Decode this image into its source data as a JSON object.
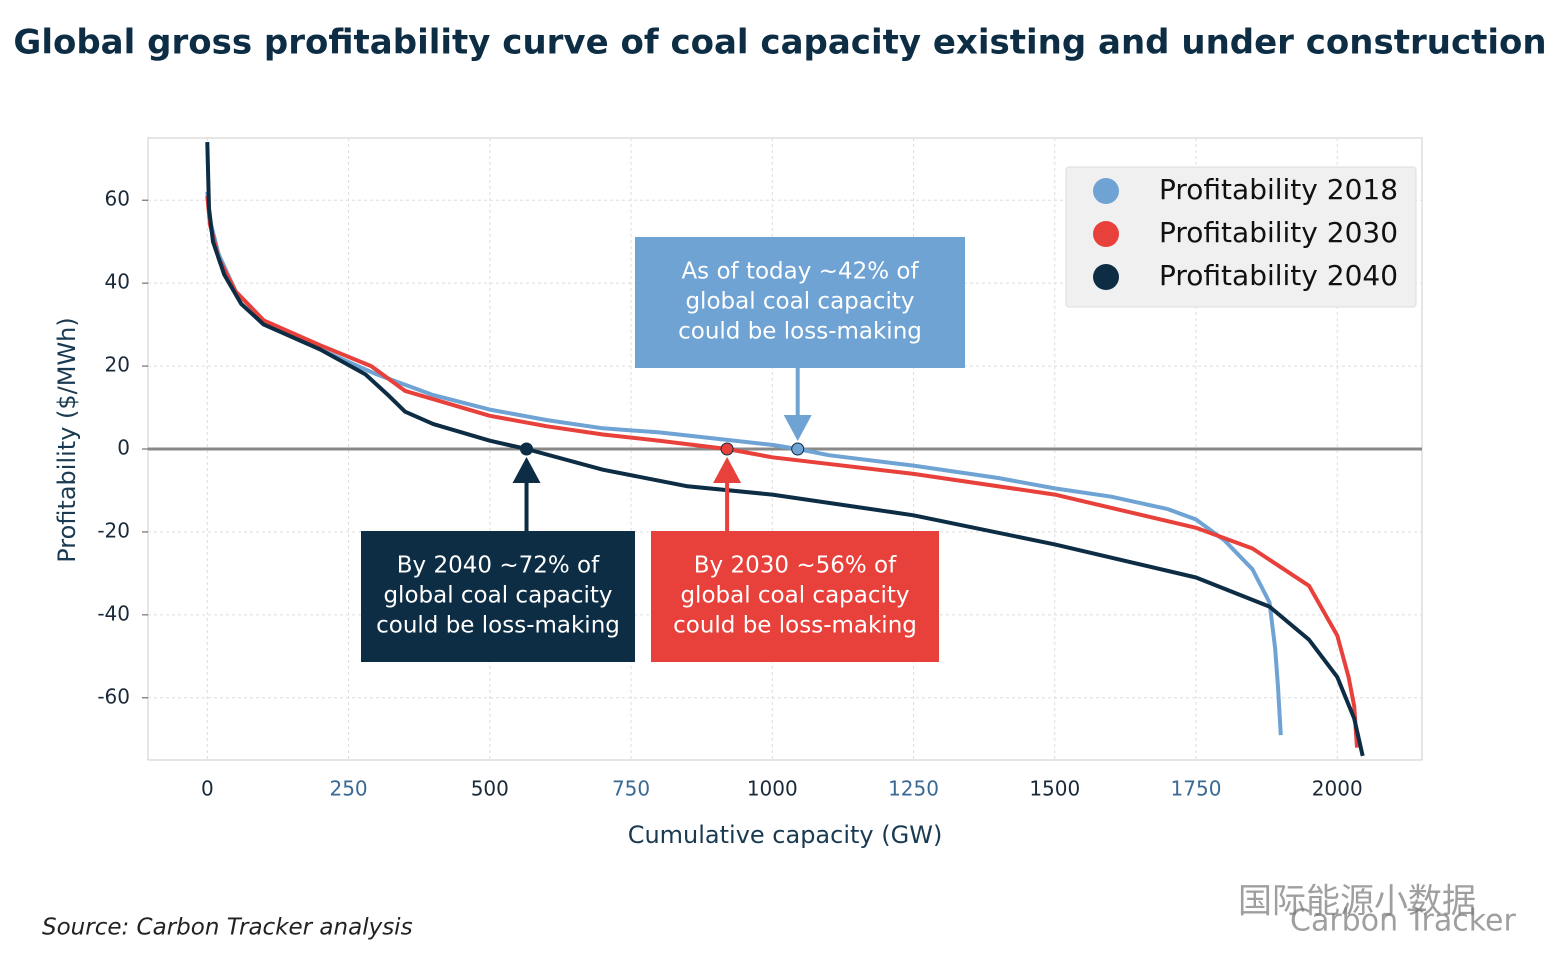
{
  "chart_data": {
    "type": "line",
    "title": "Global gross profitability curve of coal capacity existing and under construction",
    "x_label": "Cumulative capacity (GW)",
    "y_label": "Profitability ($/MWh)",
    "source": "Source: Carbon Tracker analysis",
    "watermark": "国际能源小数据",
    "logo": "Carbon Tracker",
    "xlim": [
      -105,
      2150
    ],
    "ylim": [
      -75,
      75
    ],
    "xticks": [
      0,
      250,
      500,
      750,
      1000,
      1250,
      1500,
      1750,
      2000
    ],
    "yticks": [
      -60,
      -40,
      -20,
      0,
      20,
      40,
      60
    ],
    "grid": true,
    "legend": "top-right",
    "series": [
      {
        "name": "Profitability 2018",
        "color": "#6fa3d4",
        "x": [
          0,
          5,
          20,
          50,
          100,
          200,
          300,
          400,
          500,
          600,
          700,
          800,
          900,
          1000,
          1045,
          1100,
          1250,
          1400,
          1500,
          1600,
          1700,
          1750,
          1800,
          1850,
          1880,
          1890,
          1895,
          1900
        ],
        "values": [
          62,
          55,
          47,
          38,
          31,
          24,
          18,
          13,
          9.5,
          7,
          5,
          4,
          2.5,
          1,
          0,
          -1.5,
          -4,
          -7,
          -9.5,
          -11.5,
          -14.5,
          -17,
          -22,
          -29,
          -37,
          -48,
          -57,
          -69
        ]
      },
      {
        "name": "Profitability 2030",
        "color": "#e8403a",
        "x": [
          0,
          5,
          20,
          50,
          100,
          200,
          290,
          350,
          400,
          500,
          600,
          700,
          800,
          920,
          1000,
          1250,
          1500,
          1750,
          1850,
          1950,
          2000,
          2020,
          2030,
          2035
        ],
        "values": [
          61,
          54,
          46,
          38,
          31,
          25,
          20,
          14,
          12,
          8,
          5.5,
          3.5,
          2,
          0,
          -2,
          -6,
          -11,
          -19,
          -24,
          -33,
          -45,
          -55,
          -62,
          -72
        ]
      },
      {
        "name": "Profitability 2040",
        "color": "#0d2d45",
        "x": [
          0,
          3,
          10,
          30,
          60,
          100,
          200,
          280,
          320,
          350,
          400,
          500,
          565,
          700,
          850,
          1000,
          1250,
          1500,
          1750,
          1880,
          1950,
          2000,
          2030,
          2045
        ],
        "values": [
          74,
          58,
          50,
          42,
          35,
          30,
          24,
          18,
          13,
          9,
          6,
          2,
          0,
          -5,
          -9,
          -11,
          -16,
          -23,
          -31,
          -38,
          -46,
          -55,
          -65,
          -74
        ]
      }
    ],
    "annotations": [
      {
        "lines": [
          "As of today ~42% of",
          "global coal capacity",
          "could be loss-making"
        ],
        "color": "#6fa3d4",
        "x": 1045,
        "y": 0
      },
      {
        "lines": [
          "By 2040 ~72% of",
          "global coal capacity",
          "could be loss-making"
        ],
        "color": "#0d2d45",
        "x": 565,
        "y": 0
      },
      {
        "lines": [
          "By 2030 ~56% of",
          "global coal capacity",
          "could be loss-making"
        ],
        "color": "#e8403a",
        "x": 920,
        "y": 0
      }
    ]
  }
}
